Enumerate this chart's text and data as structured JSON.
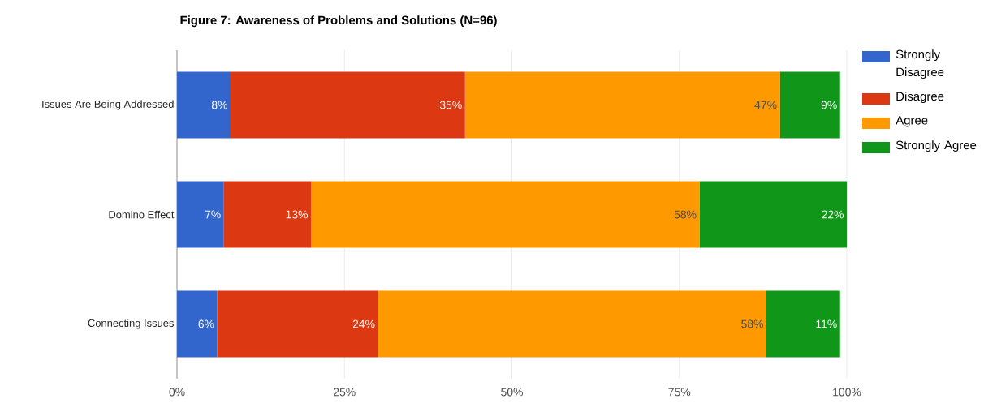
{
  "chart_data": {
    "type": "bar",
    "orientation": "horizontal",
    "stacked": true,
    "title": "Figure 7: Awareness of Problems and Solutions (N=96)",
    "categories": [
      "Issues Are Being Addressed",
      "Domino Effect",
      "Connecting Issues"
    ],
    "series": [
      {
        "name": "Strongly Disagree",
        "color": "#3366cc",
        "values": [
          8,
          7,
          6
        ],
        "value_labels": [
          "8%",
          "7%",
          "6%"
        ]
      },
      {
        "name": "Disagree",
        "color": "#dc3912",
        "values": [
          35,
          13,
          24
        ],
        "value_labels": [
          "35%",
          "13%",
          "24%"
        ]
      },
      {
        "name": "Agree",
        "color": "#ff9900",
        "values": [
          47,
          58,
          58
        ],
        "value_labels": [
          "47%",
          "58%",
          "58%"
        ]
      },
      {
        "name": "Strongly Agree",
        "color": "#109618",
        "values": [
          9,
          22,
          11
        ],
        "value_labels": [
          "9%",
          "22%",
          "11%"
        ]
      }
    ],
    "xlim": [
      0,
      100
    ],
    "xticks": [
      {
        "value": 0,
        "label": "0%"
      },
      {
        "value": 25,
        "label": "25%"
      },
      {
        "value": 50,
        "label": "50%"
      },
      {
        "value": 75,
        "label": "75%"
      },
      {
        "value": 100,
        "label": "100%"
      }
    ],
    "grid": "x",
    "legend": "right"
  }
}
